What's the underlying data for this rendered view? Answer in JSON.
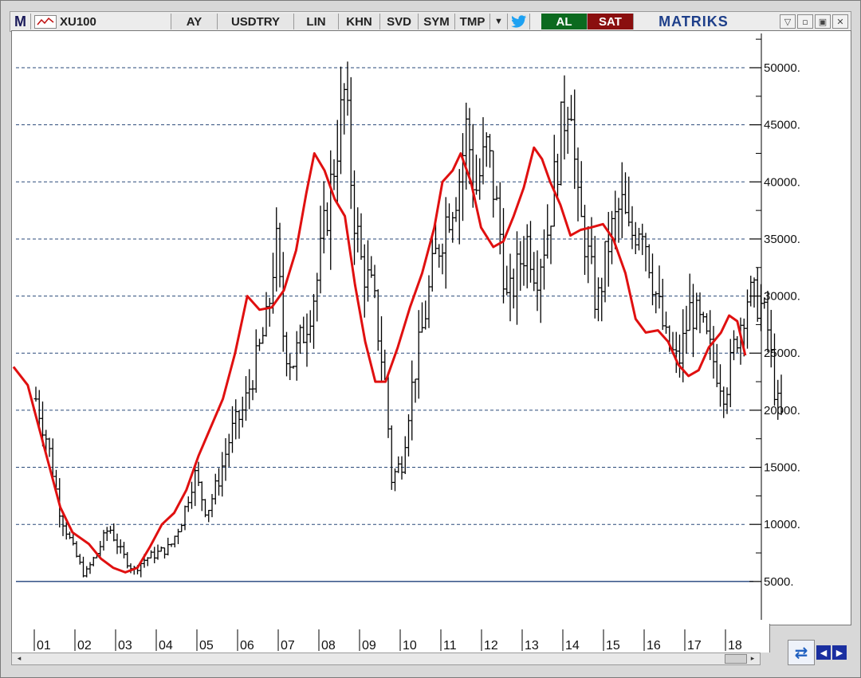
{
  "toolbar": {
    "logo": "M",
    "symbol": "XU100",
    "buttons": [
      "AY",
      "USDTRY",
      "LIN",
      "KHN",
      "SVD",
      "SYM",
      "TMP"
    ],
    "buy_label": "AL",
    "sell_label": "SAT",
    "brand": "MATRIKS",
    "buy_color": "#0b6a1f",
    "sell_color": "#8a0f0f"
  },
  "chart_data": {
    "type": "bar",
    "title": "",
    "xlabel": "",
    "ylabel": "",
    "ylim": [
      1500,
      53000
    ],
    "y_ticks": [
      5000,
      10000,
      15000,
      20000,
      25000,
      30000,
      35000,
      40000,
      45000,
      50000
    ],
    "y_tick_labels": [
      "5000.",
      "10000.",
      "15000.",
      "20000.",
      "25000.",
      "30000.",
      "35000.",
      "40000.",
      "45000.",
      "50000."
    ],
    "x_tick_labels": [
      "01",
      "02",
      "03",
      "04",
      "05",
      "06",
      "07",
      "08",
      "09",
      "10",
      "11",
      "12",
      "13",
      "14",
      "15",
      "16",
      "17",
      "18"
    ],
    "grid": "horizontal-dashed",
    "support_level": 5000,
    "series": [
      {
        "kind": "ohlc",
        "color": "#000000",
        "ohlc_monthly": [],
        "anchor_closes": [
          [
            0.0,
            21000
          ],
          [
            0.3,
            17000
          ],
          [
            0.6,
            11000
          ],
          [
            0.9,
            8000
          ],
          [
            1.2,
            5500
          ],
          [
            1.5,
            7500
          ],
          [
            1.8,
            9800
          ],
          [
            2.1,
            7500
          ],
          [
            2.4,
            6000
          ],
          [
            2.7,
            7000
          ],
          [
            3.0,
            7500
          ],
          [
            3.3,
            8000
          ],
          [
            3.6,
            10500
          ],
          [
            3.9,
            14500
          ],
          [
            4.2,
            11000
          ],
          [
            4.5,
            14000
          ],
          [
            4.8,
            18000
          ],
          [
            5.1,
            20000
          ],
          [
            5.4,
            24000
          ],
          [
            5.7,
            28000
          ],
          [
            5.9,
            35000
          ],
          [
            6.1,
            26000
          ],
          [
            6.3,
            24000
          ],
          [
            6.6,
            27000
          ],
          [
            6.9,
            31000
          ],
          [
            7.1,
            36000
          ],
          [
            7.35,
            42000
          ],
          [
            7.6,
            48000
          ],
          [
            7.8,
            38000
          ],
          [
            8.0,
            33000
          ],
          [
            8.3,
            30000
          ],
          [
            8.6,
            22000
          ],
          [
            8.75,
            14000
          ],
          [
            9.0,
            15500
          ],
          [
            9.2,
            21000
          ],
          [
            9.5,
            27000
          ],
          [
            9.8,
            33000
          ],
          [
            10.1,
            37000
          ],
          [
            10.4,
            40000
          ],
          [
            10.6,
            45000
          ],
          [
            10.8,
            39000
          ],
          [
            11.1,
            43000
          ],
          [
            11.4,
            36000
          ],
          [
            11.6,
            29000
          ],
          [
            11.9,
            33000
          ],
          [
            12.1,
            35000
          ],
          [
            12.3,
            32000
          ],
          [
            12.6,
            36000
          ],
          [
            12.9,
            44000
          ],
          [
            13.15,
            49000
          ],
          [
            13.3,
            38000
          ],
          [
            13.5,
            35000
          ],
          [
            13.8,
            29000
          ],
          [
            14.1,
            35000
          ],
          [
            14.4,
            38000
          ],
          [
            14.6,
            35000
          ],
          [
            14.9,
            37000
          ],
          [
            15.2,
            31000
          ],
          [
            15.5,
            26000
          ],
          [
            15.8,
            24000
          ],
          [
            16.1,
            29000
          ],
          [
            16.4,
            27000
          ],
          [
            16.7,
            24000
          ],
          [
            16.95,
            21500
          ],
          [
            17.2,
            26000
          ],
          [
            17.5,
            30000
          ],
          [
            17.8,
            29500
          ],
          [
            18.0,
            27000
          ],
          [
            18.2,
            21000
          ],
          [
            18.35,
            19300
          ]
        ]
      },
      {
        "kind": "moving-average",
        "color": "#e01010",
        "points": [
          [
            -0.55,
            23800
          ],
          [
            -0.2,
            22200
          ],
          [
            0.0,
            19500
          ],
          [
            0.3,
            15500
          ],
          [
            0.6,
            11500
          ],
          [
            0.9,
            9300
          ],
          [
            1.3,
            8300
          ],
          [
            1.6,
            7000
          ],
          [
            1.9,
            6200
          ],
          [
            2.2,
            5800
          ],
          [
            2.5,
            6200
          ],
          [
            2.8,
            8000
          ],
          [
            3.1,
            10000
          ],
          [
            3.4,
            11000
          ],
          [
            3.7,
            13000
          ],
          [
            4.0,
            16000
          ],
          [
            4.3,
            18500
          ],
          [
            4.6,
            21000
          ],
          [
            4.9,
            25000
          ],
          [
            5.2,
            30000
          ],
          [
            5.5,
            28800
          ],
          [
            5.8,
            29000
          ],
          [
            6.1,
            30500
          ],
          [
            6.4,
            34000
          ],
          [
            6.65,
            39000
          ],
          [
            6.85,
            42500
          ],
          [
            7.1,
            41000
          ],
          [
            7.35,
            38500
          ],
          [
            7.6,
            37000
          ],
          [
            7.85,
            31000
          ],
          [
            8.1,
            26000
          ],
          [
            8.35,
            22500
          ],
          [
            8.6,
            22500
          ],
          [
            8.9,
            25500
          ],
          [
            9.2,
            29000
          ],
          [
            9.5,
            32000
          ],
          [
            9.8,
            36000
          ],
          [
            10.0,
            40000
          ],
          [
            10.25,
            41000
          ],
          [
            10.45,
            42500
          ],
          [
            10.7,
            40000
          ],
          [
            10.95,
            36000
          ],
          [
            11.25,
            34300
          ],
          [
            11.5,
            34800
          ],
          [
            11.75,
            37000
          ],
          [
            12.0,
            39500
          ],
          [
            12.25,
            43000
          ],
          [
            12.45,
            42000
          ],
          [
            12.65,
            40000
          ],
          [
            12.9,
            38000
          ],
          [
            13.15,
            35300
          ],
          [
            13.4,
            35800
          ],
          [
            13.65,
            36000
          ],
          [
            13.95,
            36300
          ],
          [
            14.2,
            35000
          ],
          [
            14.5,
            32000
          ],
          [
            14.75,
            28000
          ],
          [
            15.0,
            26800
          ],
          [
            15.3,
            27000
          ],
          [
            15.55,
            26000
          ],
          [
            15.8,
            24000
          ],
          [
            16.05,
            23000
          ],
          [
            16.3,
            23500
          ],
          [
            16.55,
            25500
          ],
          [
            16.85,
            26800
          ],
          [
            17.05,
            28300
          ],
          [
            17.25,
            27800
          ],
          [
            17.45,
            24800
          ]
        ]
      }
    ]
  }
}
